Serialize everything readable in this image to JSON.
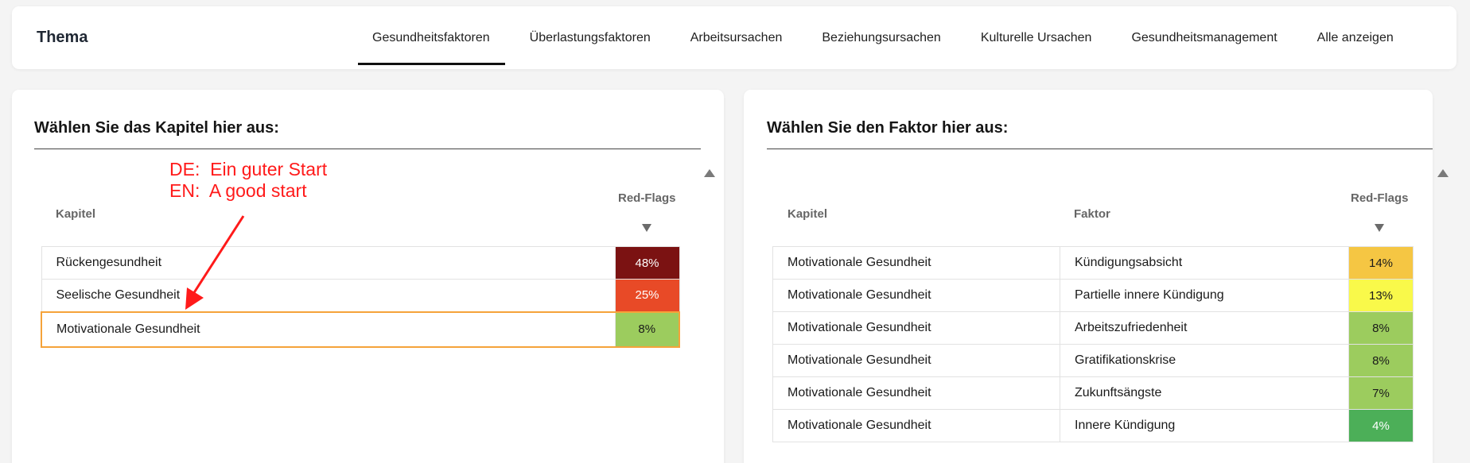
{
  "topbar": {
    "title": "Thema",
    "tabs": [
      {
        "label": "Gesundheitsfaktoren",
        "active": true
      },
      {
        "label": "Überlastungsfaktoren",
        "active": false
      },
      {
        "label": "Arbeitsursachen",
        "active": false
      },
      {
        "label": "Beziehungsursachen",
        "active": false
      },
      {
        "label": "Kulturelle Ursachen",
        "active": false
      },
      {
        "label": "Gesundheitsmanagement",
        "active": false
      },
      {
        "label": "Alle anzeigen",
        "active": false
      }
    ]
  },
  "left_panel": {
    "heading": "Wählen Sie das Kapitel hier aus:",
    "col_kapitel": "Kapitel",
    "col_redflags": "Red-Flags",
    "rows": [
      {
        "kapitel": "Rückengesundheit",
        "redflags": "48%",
        "color": "#7b1212",
        "text_color": "#ffffff",
        "selected": false
      },
      {
        "kapitel": "Seelische Gesundheit",
        "redflags": "25%",
        "color": "#e84a27",
        "text_color": "#ffffff",
        "selected": false
      },
      {
        "kapitel": "Motivationale Gesundheit",
        "redflags": "8%",
        "color": "#9ccc5e",
        "text_color": "#1a1a1a",
        "selected": true
      }
    ]
  },
  "right_panel": {
    "heading": "Wählen Sie den Faktor hier aus:",
    "col_kapitel": "Kapitel",
    "col_faktor": "Faktor",
    "col_redflags": "Red-Flags",
    "rows": [
      {
        "kapitel": "Motivationale Gesundheit",
        "faktor": "Kündigungsabsicht",
        "redflags": "14%",
        "color": "#f5c643",
        "text_color": "#1a1a1a"
      },
      {
        "kapitel": "Motivationale Gesundheit",
        "faktor": "Partielle innere Kündigung",
        "redflags": "13%",
        "color": "#f9f94a",
        "text_color": "#1a1a1a"
      },
      {
        "kapitel": "Motivationale Gesundheit",
        "faktor": "Arbeitszufriedenheit",
        "redflags": "8%",
        "color": "#9ccc5e",
        "text_color": "#1a1a1a"
      },
      {
        "kapitel": "Motivationale Gesundheit",
        "faktor": "Gratifikationskrise",
        "redflags": "8%",
        "color": "#9ccc5e",
        "text_color": "#1a1a1a"
      },
      {
        "kapitel": "Motivationale Gesundheit",
        "faktor": "Zukunftsängste",
        "redflags": "7%",
        "color": "#9ccc5e",
        "text_color": "#1a1a1a"
      },
      {
        "kapitel": "Motivationale Gesundheit",
        "faktor": "Innere Kündigung",
        "redflags": "4%",
        "color": "#4caf58",
        "text_color": "#ffffff"
      }
    ]
  },
  "annotation": {
    "line_de": "DE:  Ein guter Start",
    "line_en": "EN:  A good start",
    "color": "#ff1a1a"
  }
}
